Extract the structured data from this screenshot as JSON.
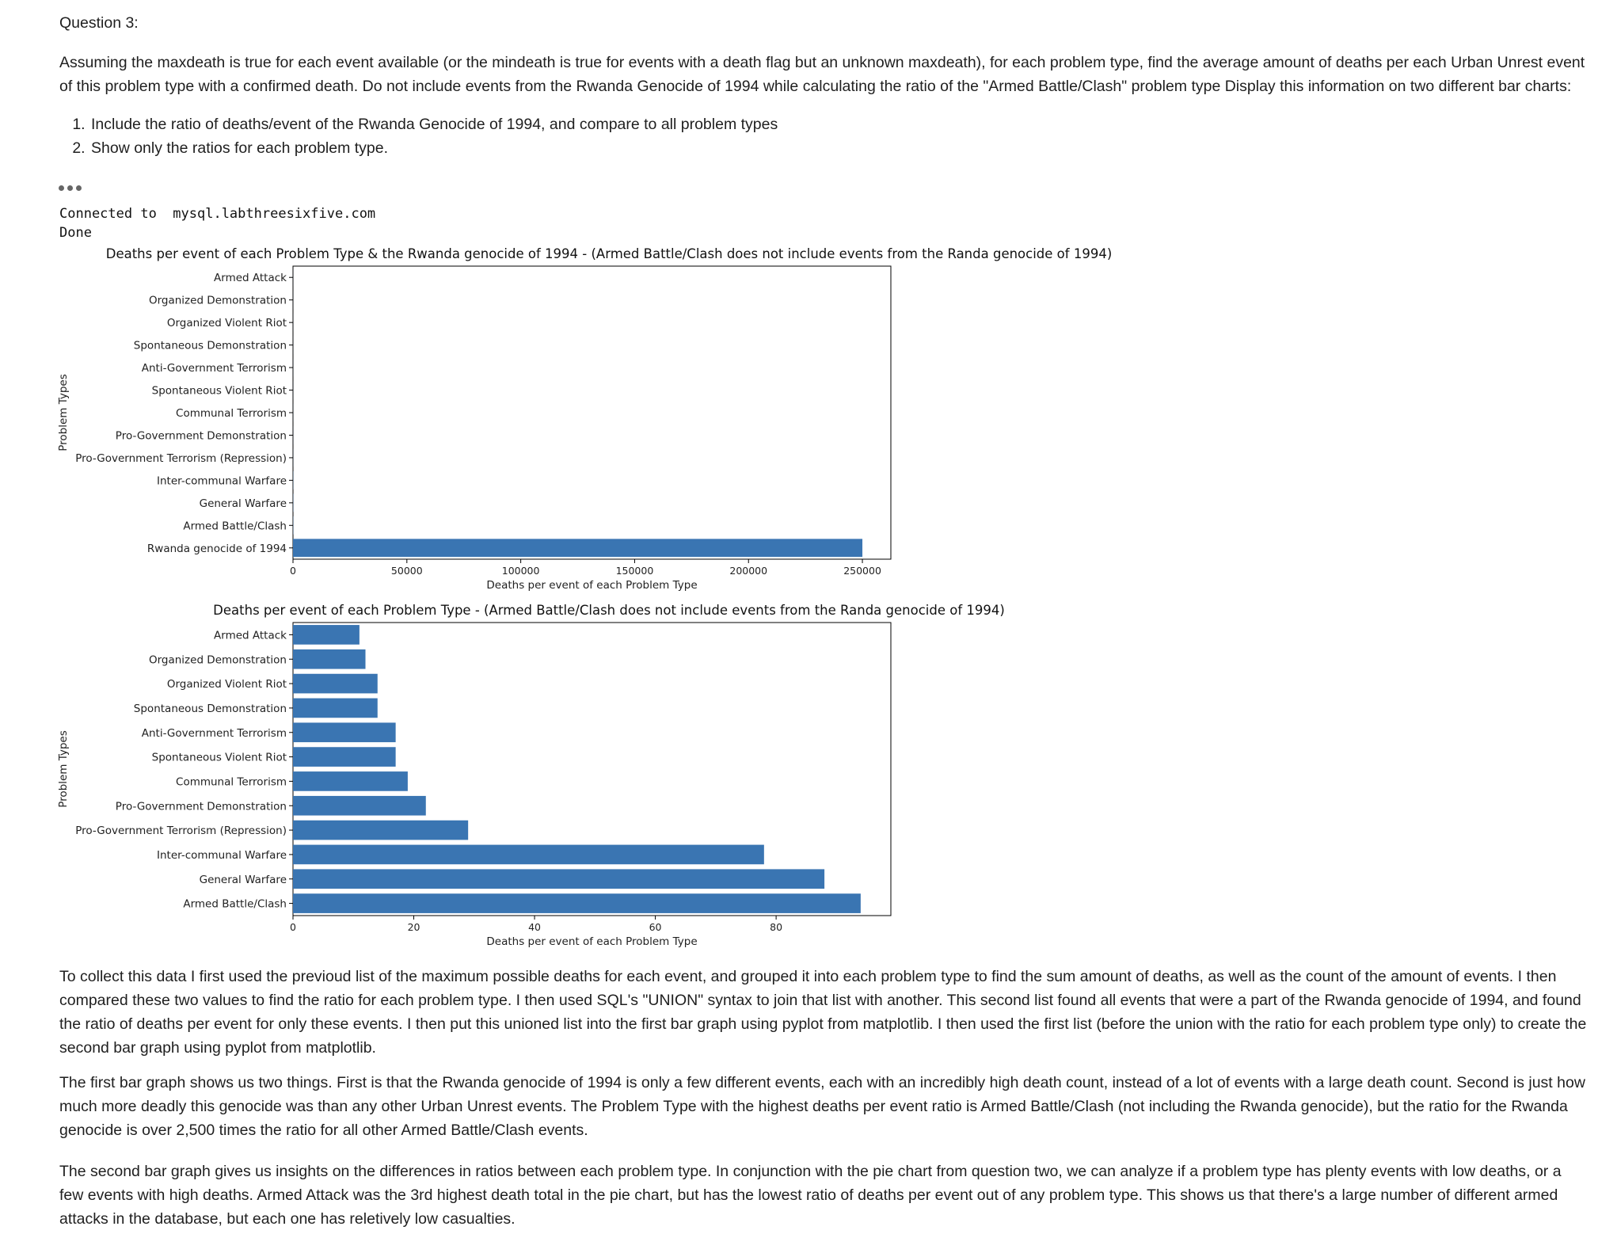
{
  "question": {
    "heading": "Question 3:",
    "body": "Assuming the maxdeath is true for each event available (or the mindeath is true for events with a death flag but an unknown maxdeath), for each problem type, find the average amount of deaths per each Urban Unrest event of this problem type with a confirmed death. Do not include events from the Rwanda Genocide of 1994 while calculating the ratio of the \"Armed Battle/Clash\" problem type Display this information on two different bar charts:",
    "items": [
      "Include the ratio of deaths/event of the Rwanda Genocide of 1994, and compare to all problem types",
      "Show only the ratios for each problem type."
    ]
  },
  "output": {
    "line1": "Connected to  mysql.labthreesixfive.com",
    "line2": "Done"
  },
  "chart_data": [
    {
      "type": "bar",
      "orientation": "horizontal",
      "title": "Deaths per event of each Problem Type & the Rwanda genocide of 1994 - (Armed Battle/Clash does not include events from the Randa genocide of 1994)",
      "xlabel": "Deaths per event of each Problem Type",
      "ylabel": "Problem Types",
      "categories": [
        "Armed Attack",
        "Organized Demonstration",
        "Organized Violent Riot",
        "Spontaneous Demonstration",
        "Anti-Government Terrorism",
        "Spontaneous Violent Riot",
        "Communal Terrorism",
        "Pro-Government Demonstration",
        "Pro-Government Terrorism (Repression)",
        "Inter-communal Warfare",
        "General Warfare",
        "Armed Battle/Clash",
        "Rwanda genocide of 1994"
      ],
      "values": [
        11,
        12,
        14,
        14,
        17,
        17,
        19,
        22,
        29,
        78,
        88,
        94,
        250000
      ],
      "xlim": [
        0,
        262500
      ],
      "xticks": [
        0,
        50000,
        100000,
        150000,
        200000,
        250000
      ],
      "bar_color": "#3a75b2",
      "grid": false
    },
    {
      "type": "bar",
      "orientation": "horizontal",
      "title": "Deaths per event of each Problem Type - (Armed Battle/Clash does not include events from the Randa genocide of 1994)",
      "xlabel": "Deaths per event of each Problem Type",
      "ylabel": "Problem Types",
      "categories": [
        "Armed Attack",
        "Organized Demonstration",
        "Organized Violent Riot",
        "Spontaneous Demonstration",
        "Anti-Government Terrorism",
        "Spontaneous Violent Riot",
        "Communal Terrorism",
        "Pro-Government Demonstration",
        "Pro-Government Terrorism (Repression)",
        "Inter-communal Warfare",
        "General Warfare",
        "Armed Battle/Clash"
      ],
      "values": [
        11,
        12,
        14,
        14,
        17,
        17,
        19,
        22,
        29,
        78,
        88,
        94
      ],
      "xlim": [
        0,
        99
      ],
      "xticks": [
        0,
        20,
        40,
        60,
        80
      ],
      "bar_color": "#3a75b2",
      "grid": false
    }
  ],
  "paragraphs": [
    "To collect this data I first used the previoud list of the maximum possible deaths for each event, and grouped it into each problem type to find the sum amount of deaths, as well as the count of the amount of events. I then compared these two values to find the ratio for each problem type. I then used SQL's \"UNION\" syntax to join that list with another. This second list found all events that were a part of the Rwanda genocide of 1994, and found the ratio of deaths per event for only these events. I then put this unioned list into the first bar graph using pyplot from matplotlib. I then used the first list (before the union with the ratio for each problem type only) to create the second bar graph using pyplot from matplotlib.",
    "The first bar graph shows us two things. First is that the Rwanda genocide of 1994 is only a few different events, each with an incredibly high death count, instead of a lot of events with a large death count. Second is just how much more deadly this genocide was than any other Urban Unrest events. The Problem Type with the highest deaths per event ratio is Armed Battle/Clash (not including the Rwanda genocide), but the ratio for the Rwanda genocide is over 2,500 times the ratio for all other Armed Battle/Clash events.",
    "The second bar graph gives us insights on the differences in ratios between each problem type. In conjunction with the pie chart from question two, we can analyze if a problem type has plenty events with low deaths, or a few events with high deaths. Armed Attack was the 3rd highest death total in the pie chart, but has the lowest ratio of deaths per event out of any problem type. This shows us that there's a large number of different armed attacks in the database, but each one has reletively low casualties."
  ]
}
